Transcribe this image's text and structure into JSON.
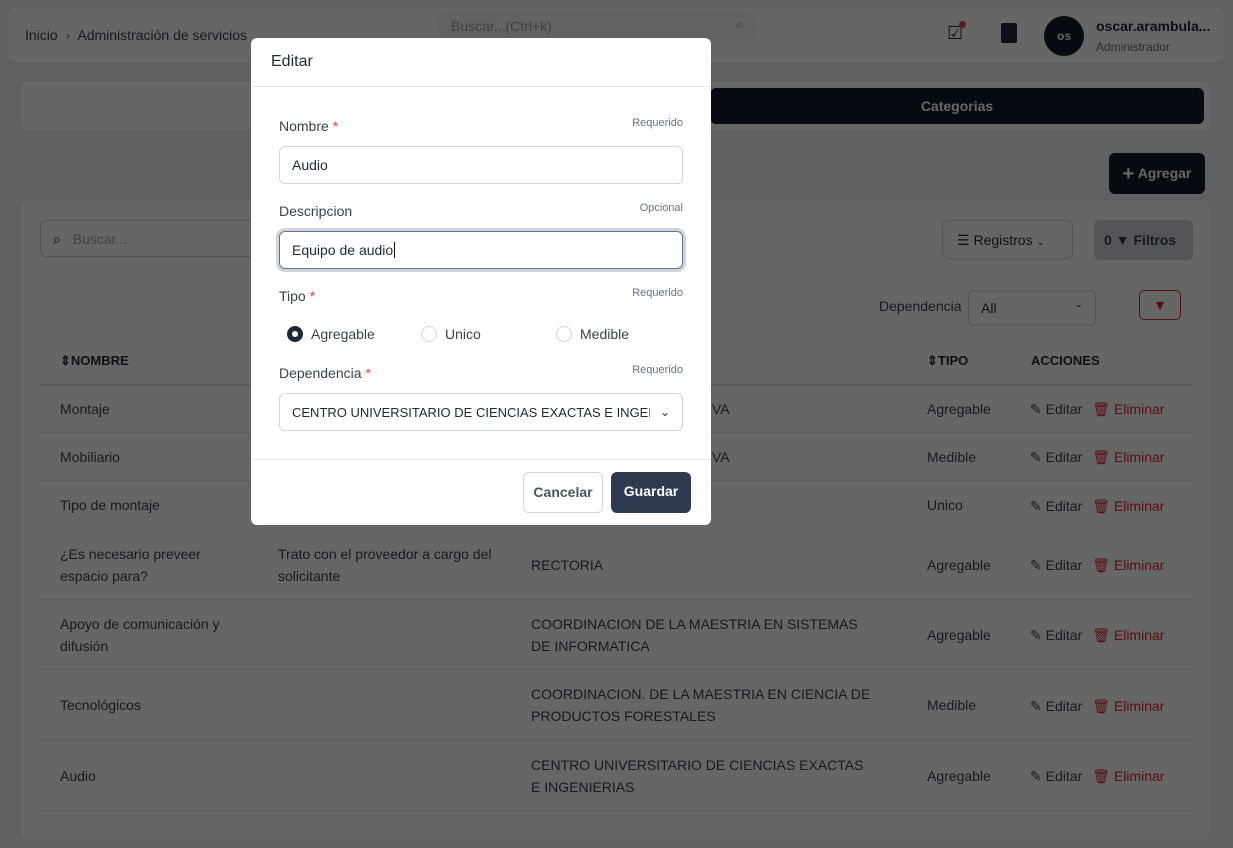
{
  "header": {
    "breadcrumb": [
      "Inicio",
      "Administración de servicios"
    ],
    "search_placeholder": "Buscar...(Ctrl+k)",
    "user_initials": "os",
    "user_name": "oscar.arambula...",
    "user_role": "Administrador"
  },
  "tabs": {
    "active": "Categorias"
  },
  "toolbar": {
    "add_label": "Agregar",
    "search_placeholder": "Buscar...",
    "records_label": "Registros",
    "filters_count": "0",
    "filters_label": "Filtros",
    "dependencia_label": "Dependencia",
    "dependencia_value": "All"
  },
  "table": {
    "headers": [
      "NOMBRE",
      "",
      "",
      "TIPO",
      "ACCIONES"
    ],
    "rows": [
      {
        "nombre": "Montaje",
        "descripcion": "",
        "dependencia": "VA",
        "tipo": "Agregable"
      },
      {
        "nombre": "Mobiliario",
        "descripcion": "",
        "dependencia": "VA",
        "tipo": "Medible"
      },
      {
        "nombre": "Tipo de montaje",
        "descripcion": "",
        "dependencia": "",
        "tipo": "Unico"
      },
      {
        "nombre": "¿Es necesario preveer espacio para?",
        "descripcion": "Trato con el proveedor a cargo del solicitante",
        "dependencia": "RECTORIA",
        "tipo": "Agregable"
      },
      {
        "nombre": "Apoyo de comunicación y difusión",
        "descripcion": "",
        "dependencia": "COORDINACION DE LA MAESTRIA EN SISTEMAS DE INFORMATICA",
        "tipo": "Agregable"
      },
      {
        "nombre": "Tecnológicos",
        "descripcion": "",
        "dependencia": "COORDINACION. DE LA MAESTRIA EN CIENCIA DE PRODUCTOS FORESTALES",
        "tipo": "Medible"
      },
      {
        "nombre": "Audio",
        "descripcion": "",
        "dependencia": "CENTRO UNIVERSITARIO DE CIENCIAS EXACTAS E INGENIERIAS",
        "tipo": "Agregable"
      }
    ],
    "edit_label": "Editar",
    "delete_label": "Eliminar"
  },
  "modal": {
    "title": "Editar",
    "nombre_label": "Nombre",
    "nombre_hint": "Requerido",
    "nombre_value": "Audio",
    "descripcion_label": "Descripcion",
    "descripcion_hint": "Opcional",
    "descripcion_value": "Equipo de audio",
    "tipo_label": "Tipo",
    "tipo_hint": "Requerido",
    "tipo_options": [
      "Agregable",
      "Unico",
      "Medible"
    ],
    "tipo_selected": "Agregable",
    "dependencia_label": "Dependencia",
    "dependencia_hint": "Requerido",
    "dependencia_value": "CENTRO UNIVERSITARIO DE CIENCIAS EXACTAS E INGENIERIAS",
    "required_mark": "*",
    "cancel_label": "Cancelar",
    "save_label": "Guardar"
  },
  "colors": {
    "primary": "#111827",
    "danger": "#dc2626",
    "overlay": "rgba(0,0,0,0.62)"
  }
}
